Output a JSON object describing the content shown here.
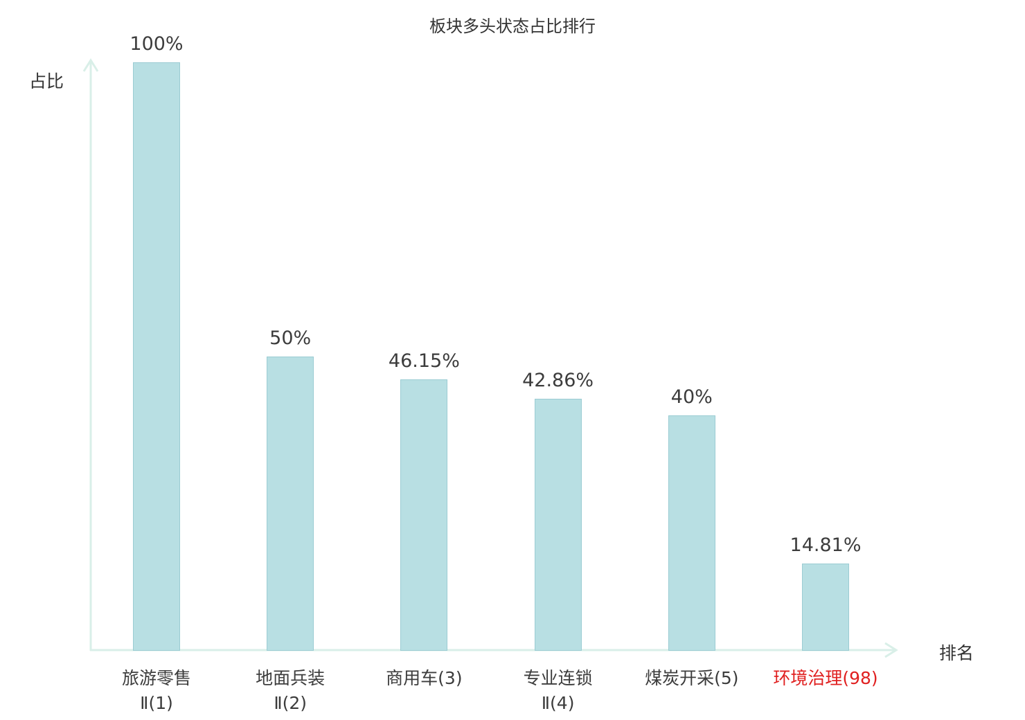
{
  "chart_data": {
    "type": "bar",
    "title": "板块多头状态占比排行",
    "ylabel": "占比",
    "xlabel": "排名",
    "categories": [
      {
        "lines": [
          "旅游零售",
          "Ⅱ(1)"
        ],
        "highlight": false
      },
      {
        "lines": [
          "地面兵装",
          "Ⅱ(2)"
        ],
        "highlight": false
      },
      {
        "lines": [
          "商用车(3)"
        ],
        "highlight": false
      },
      {
        "lines": [
          "专业连锁",
          "Ⅱ(4)"
        ],
        "highlight": false
      },
      {
        "lines": [
          "煤炭开采(5)"
        ],
        "highlight": false
      },
      {
        "lines": [
          "环境治理(98)"
        ],
        "highlight": true
      }
    ],
    "values": [
      100,
      50,
      46.15,
      42.86,
      40,
      14.81
    ],
    "value_labels": [
      "100%",
      "50%",
      "46.15%",
      "42.86%",
      "40%",
      "14.81%"
    ],
    "ylim": [
      0,
      100
    ],
    "legend": "none",
    "grid": "off",
    "bar_color": "#b8dfe3",
    "bar_border_color": "#9bccd3",
    "axis_color": "#d9efe8",
    "label_color": "#3c3c3c",
    "highlight_color": "#e02020"
  }
}
